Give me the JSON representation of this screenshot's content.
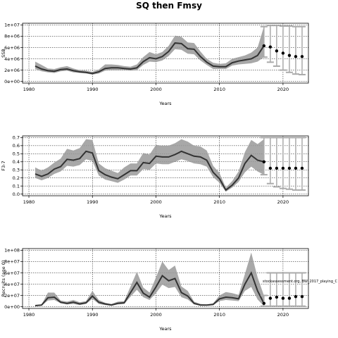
{
  "title": "SQ then Fmsy",
  "credit": "stockassessment.org, BW_2017_playing_C",
  "colors": {
    "band": "#999999",
    "median": "#333333",
    "forecast_band": "#aaaaaa",
    "forecast_point": "#000000",
    "grid": "#000000"
  },
  "chart_data": [
    {
      "type": "line",
      "title": "",
      "xlabel": "Years",
      "ylabel": "SSB",
      "xlim": [
        1979,
        2024
      ],
      "ylim": [
        0,
        10000000
      ],
      "xticks": [
        1980,
        1990,
        2000,
        2010,
        2020
      ],
      "yticks": [
        0,
        2000000,
        4000000,
        6000000,
        8000000,
        10000000
      ],
      "ytick_labels": [
        "0e+00",
        "2e+06",
        "4e+06",
        "6e+06",
        "8e+06",
        "1e+07"
      ],
      "grid": true,
      "x": [
        1981,
        1982,
        1983,
        1984,
        1985,
        1986,
        1987,
        1988,
        1989,
        1990,
        1991,
        1992,
        1993,
        1994,
        1995,
        1996,
        1997,
        1998,
        1999,
        2000,
        2001,
        2002,
        2003,
        2004,
        2005,
        2006,
        2007,
        2008,
        2009,
        2010,
        2011,
        2012,
        2013,
        2014,
        2015,
        2016,
        2017
      ],
      "median": [
        2700000.0,
        2200000.0,
        1900000.0,
        1800000.0,
        2100000.0,
        2200000.0,
        1900000.0,
        1700000.0,
        1600000.0,
        1400000.0,
        1700000.0,
        2300000.0,
        2400000.0,
        2400000.0,
        2300000.0,
        2200000.0,
        2400000.0,
        3500000.0,
        4200000.0,
        4000000.0,
        4400000.0,
        5300000.0,
        6800000.0,
        6700000.0,
        5800000.0,
        5700000.0,
        4400000.0,
        3400000.0,
        2700000.0,
        2600000.0,
        2600000.0,
        3300000.0,
        3600000.0,
        3800000.0,
        4000000.0,
        4600000.0,
        6300000.0
      ],
      "lower": [
        2200000.0,
        1800000.0,
        1600000.0,
        1500000.0,
        1800000.0,
        1900000.0,
        1600000.0,
        1500000.0,
        1400000.0,
        1200000.0,
        1400000.0,
        1900000.0,
        2000000.0,
        2000000.0,
        2000000.0,
        1900000.0,
        2000000.0,
        2900000.0,
        3500000.0,
        3400000.0,
        3700000.0,
        4500000.0,
        5700000.0,
        5600000.0,
        4900000.0,
        4800000.0,
        3700000.0,
        2900000.0,
        2200000.0,
        2200000.0,
        2200000.0,
        2800000.0,
        3000000.0,
        3100000.0,
        3200000.0,
        3500000.0,
        4300000.0
      ],
      "upper": [
        3500000.0,
        2900000.0,
        2300000.0,
        2200000.0,
        2500000.0,
        2700000.0,
        2300000.0,
        2000000.0,
        1900000.0,
        1700000.0,
        2100000.0,
        3000000.0,
        3000000.0,
        2900000.0,
        2700000.0,
        2600000.0,
        3000000.0,
        4300000.0,
        5200000.0,
        4800000.0,
        5200000.0,
        6300000.0,
        8100000.0,
        7900000.0,
        6900000.0,
        6800000.0,
        5300000.0,
        4000000.0,
        3300000.0,
        3100000.0,
        3200000.0,
        4000000.0,
        4300000.0,
        4600000.0,
        5100000.0,
        6000000.0,
        9700000.0
      ],
      "forecast": {
        "x": [
          2017,
          2018,
          2019,
          2020,
          2021,
          2022,
          2023
        ],
        "values": [
          6300000.0,
          6100000.0,
          5400000.0,
          5000000.0,
          4600000.0,
          4400000.0,
          4400000.0
        ],
        "lower": [
          4300000.0,
          3400000.0,
          2700000.0,
          2000000.0,
          1600000.0,
          1300000.0,
          1200000.0
        ],
        "upper": [
          9700000.0,
          9900000.0,
          9900000.0,
          9800000.0,
          9800000.0,
          9700000.0,
          9700000.0
        ]
      }
    },
    {
      "type": "line",
      "title": "",
      "xlabel": "Years",
      "ylabel": "F3-7",
      "xlim": [
        1979,
        2024
      ],
      "ylim": [
        0,
        0.7
      ],
      "xticks": [
        1980,
        1990,
        2000,
        2010,
        2020
      ],
      "yticks": [
        0.0,
        0.1,
        0.2,
        0.3,
        0.4,
        0.5,
        0.6,
        0.7
      ],
      "ytick_labels": [
        "0.0",
        "0.1",
        "0.2",
        "0.3",
        "0.4",
        "0.5",
        "0.6",
        "0.7"
      ],
      "grid": true,
      "x": [
        1981,
        1982,
        1983,
        1984,
        1985,
        1986,
        1987,
        1988,
        1989,
        1990,
        1991,
        1992,
        1993,
        1994,
        1995,
        1996,
        1997,
        1998,
        1999,
        2000,
        2001,
        2002,
        2003,
        2004,
        2005,
        2006,
        2007,
        2008,
        2009,
        2010,
        2011,
        2012,
        2013,
        2014,
        2015,
        2016,
        2017
      ],
      "median": [
        0.25,
        0.22,
        0.25,
        0.31,
        0.34,
        0.43,
        0.42,
        0.44,
        0.53,
        0.51,
        0.29,
        0.24,
        0.21,
        0.19,
        0.24,
        0.29,
        0.29,
        0.39,
        0.38,
        0.47,
        0.46,
        0.46,
        0.49,
        0.53,
        0.5,
        0.47,
        0.46,
        0.42,
        0.27,
        0.19,
        0.05,
        0.11,
        0.2,
        0.38,
        0.48,
        0.42,
        0.4
      ],
      "lower": [
        0.2,
        0.17,
        0.2,
        0.25,
        0.28,
        0.35,
        0.34,
        0.36,
        0.43,
        0.41,
        0.23,
        0.18,
        0.16,
        0.14,
        0.18,
        0.23,
        0.23,
        0.31,
        0.3,
        0.38,
        0.37,
        0.37,
        0.4,
        0.43,
        0.41,
        0.38,
        0.37,
        0.34,
        0.21,
        0.14,
        0.03,
        0.08,
        0.15,
        0.27,
        0.34,
        0.28,
        0.24
      ],
      "upper": [
        0.33,
        0.29,
        0.33,
        0.39,
        0.44,
        0.56,
        0.54,
        0.57,
        0.68,
        0.67,
        0.38,
        0.32,
        0.29,
        0.26,
        0.33,
        0.38,
        0.38,
        0.51,
        0.49,
        0.61,
        0.6,
        0.6,
        0.63,
        0.68,
        0.65,
        0.6,
        0.59,
        0.54,
        0.35,
        0.26,
        0.08,
        0.16,
        0.28,
        0.52,
        0.67,
        0.62,
        0.68
      ],
      "forecast": {
        "x": [
          2017,
          2018,
          2019,
          2020,
          2021,
          2022,
          2023
        ],
        "values": [
          0.4,
          0.32,
          0.32,
          0.32,
          0.32,
          0.32,
          0.32
        ],
        "lower": [
          0.24,
          0.13,
          0.09,
          0.07,
          0.06,
          0.05,
          0.05
        ],
        "upper": [
          0.7,
          0.7,
          0.7,
          0.7,
          0.7,
          0.7,
          0.7
        ]
      }
    },
    {
      "type": "line",
      "title": "",
      "xlabel": "Years",
      "ylabel": "Recruits (age 0)",
      "xlim": [
        1979,
        2024
      ],
      "ylim": [
        0,
        100000000
      ],
      "xticks": [
        1980,
        1990,
        2000,
        2010,
        2020
      ],
      "yticks": [
        0,
        20000000,
        40000000,
        60000000,
        80000000,
        100000000
      ],
      "ytick_labels": [
        "0e+00",
        "2e+07",
        "4e+07",
        "6e+07",
        "8e+07",
        "1e+08"
      ],
      "grid": true,
      "x": [
        1981,
        1982,
        1983,
        1984,
        1985,
        1986,
        1987,
        1988,
        1989,
        1990,
        1991,
        1992,
        1993,
        1994,
        1995,
        1996,
        1997,
        1998,
        1999,
        2000,
        2001,
        2002,
        2003,
        2004,
        2005,
        2006,
        2007,
        2008,
        2009,
        2010,
        2011,
        2012,
        2013,
        2014,
        2015,
        2016,
        2017
      ],
      "median": [
        2000000.0,
        3000000.0,
        16000000.0,
        17000000.0,
        8000000.0,
        6000000.0,
        8000000.0,
        5000000.0,
        7000000.0,
        19000000.0,
        8000000.0,
        5000000.0,
        3000000.0,
        6000000.0,
        7000000.0,
        25000000.0,
        43000000.0,
        24000000.0,
        17000000.0,
        35000000.0,
        55000000.0,
        46000000.0,
        50000000.0,
        25000000.0,
        19000000.0,
        6000000.0,
        3000000.0,
        3000000.0,
        4000000.0,
        14000000.0,
        17000000.0,
        16000000.0,
        14000000.0,
        40000000.0,
        60000000.0,
        28000000.0,
        6000000.0
      ],
      "lower": [
        1000000.0,
        2000000.0,
        11000000.0,
        12000000.0,
        6000000.0,
        4000000.0,
        5000000.0,
        3000000.0,
        5000000.0,
        14000000.0,
        5000000.0,
        3000000.0,
        2000000.0,
        4000000.0,
        5000000.0,
        18000000.0,
        30000000.0,
        17000000.0,
        12000000.0,
        24000000.0,
        39000000.0,
        33000000.0,
        35000000.0,
        17000000.0,
        13000000.0,
        4000000.0,
        2000000.0,
        2000000.0,
        3000000.0,
        10000000.0,
        12000000.0,
        11000000.0,
        10000000.0,
        28000000.0,
        35000000.0,
        13000000.0,
        1000000.0
      ],
      "upper": [
        3000000.0,
        4000000.0,
        25000000.0,
        25000000.0,
        11000000.0,
        9000000.0,
        12000000.0,
        8000000.0,
        10000000.0,
        28000000.0,
        12000000.0,
        7000000.0,
        5000000.0,
        9000000.0,
        10000000.0,
        36000000.0,
        62000000.0,
        34000000.0,
        25000000.0,
        52000000.0,
        80000000.0,
        65000000.0,
        73000000.0,
        36000000.0,
        28000000.0,
        9000000.0,
        5000000.0,
        4000000.0,
        6000000.0,
        20000000.0,
        26000000.0,
        24000000.0,
        21000000.0,
        58000000.0,
        96000000.0,
        52000000.0,
        20000000.0
      ],
      "forecast": {
        "x": [
          2017,
          2018,
          2019,
          2020,
          2021,
          2022,
          2023
        ],
        "values": [
          6000000.0,
          15000000.0,
          17000000.0,
          15000000.0,
          15000000.0,
          18000000.0,
          18000000.0
        ],
        "lower": [
          1000000.0,
          1000000.0,
          1000000.0,
          1000000.0,
          1000000.0,
          1000000.0,
          1000000.0
        ],
        "upper": [
          20000000.0,
          60000000.0,
          60000000.0,
          60000000.0,
          60000000.0,
          60000000.0,
          60000000.0
        ]
      }
    }
  ]
}
